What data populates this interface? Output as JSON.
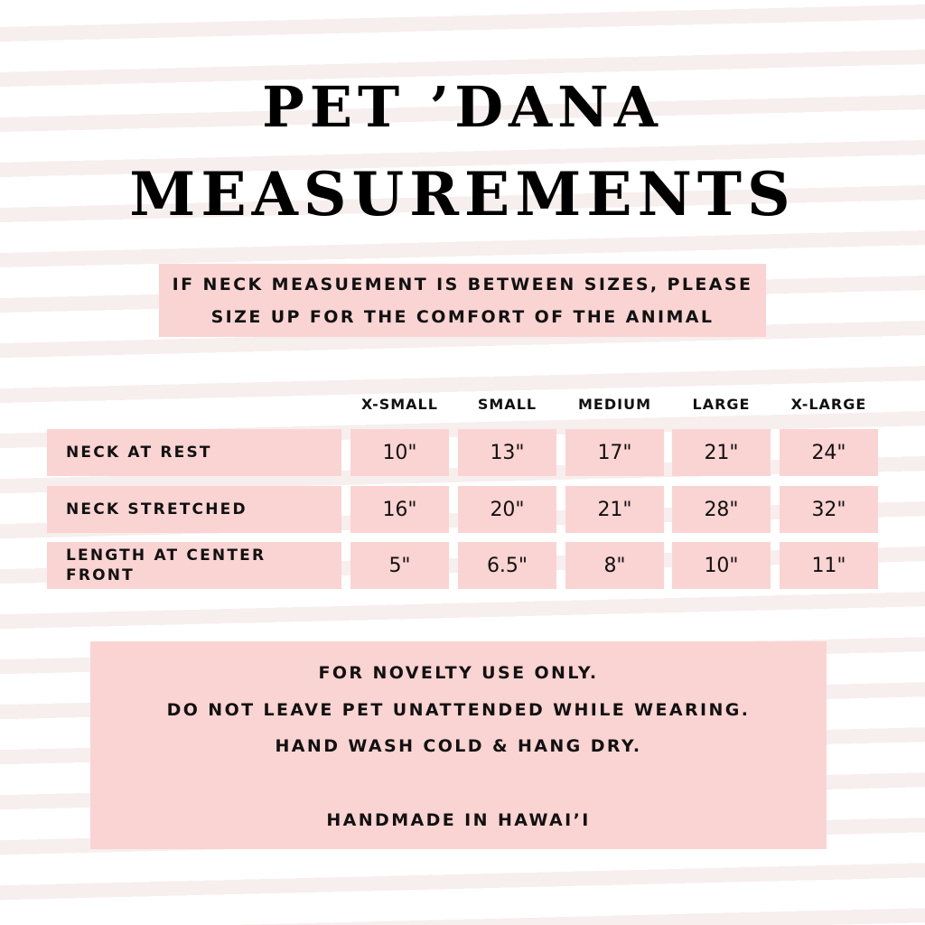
{
  "title": {
    "line1": "PET ’DANA",
    "line2": "MEASUREMENTS"
  },
  "note": {
    "line1": "IF NECK MEASUEMENT IS BETWEEN SIZES, PLEASE",
    "line2": "SIZE UP FOR THE COMFORT OF THE ANIMAL"
  },
  "table": {
    "columns": [
      "X-SMALL",
      "SMALL",
      "MEDIUM",
      "LARGE",
      "X-LARGE"
    ],
    "rows": [
      {
        "label": "NECK AT REST",
        "values": [
          "10\"",
          "13\"",
          "17\"",
          "21\"",
          "24\""
        ]
      },
      {
        "label": "NECK STRETCHED",
        "values": [
          "16\"",
          "20\"",
          "21\"",
          "28\"",
          "32\""
        ]
      },
      {
        "label": "LENGTH AT CENTER FRONT",
        "values": [
          "5\"",
          "6.5\"",
          "8\"",
          "10\"",
          "11\""
        ]
      }
    ]
  },
  "care": {
    "line1": "FOR NOVELTY USE ONLY.",
    "line2": "DO NOT LEAVE PET UNATTENDED WHILE WEARING.",
    "line3": "HAND WASH COLD & HANG DRY.",
    "line4": "HANDMADE IN HAWAI’I"
  },
  "colors": {
    "box": "#fad4d2",
    "stripe": "#f7eeee",
    "text": "#111111"
  }
}
